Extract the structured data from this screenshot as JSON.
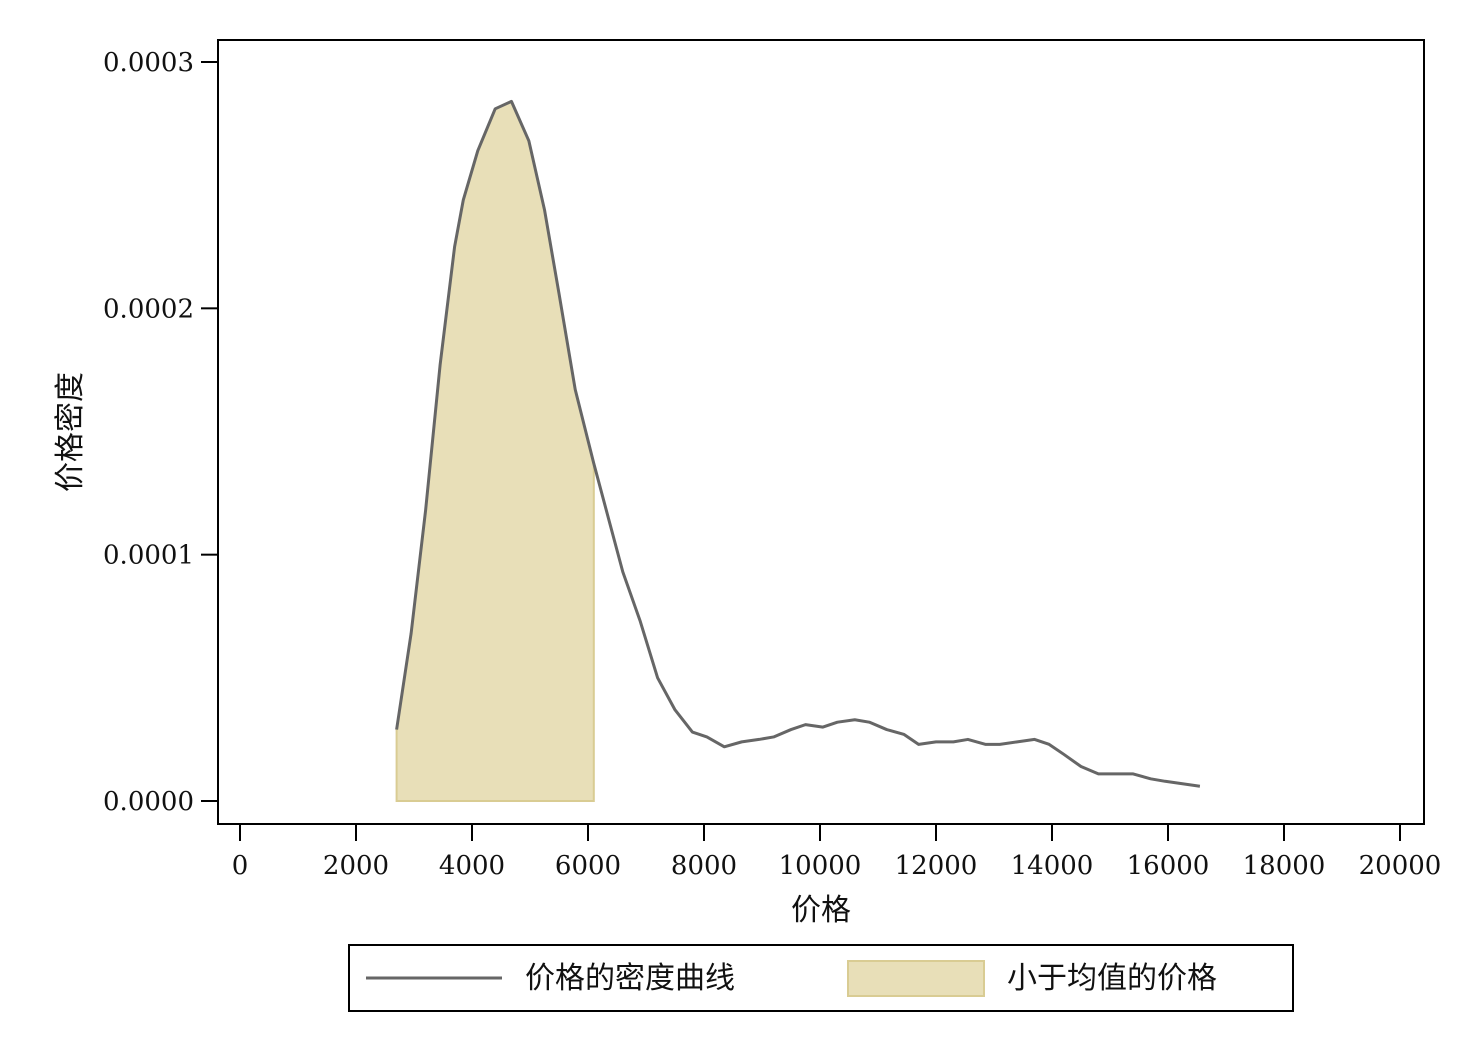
{
  "chart_data": {
    "type": "area",
    "title": "",
    "xlabel": "价格",
    "ylabel": "价格密度",
    "xlim": [
      0,
      20000
    ],
    "ylim": [
      0,
      0.0003
    ],
    "xticks": [
      0,
      2000,
      4000,
      6000,
      8000,
      10000,
      12000,
      14000,
      16000,
      18000,
      20000
    ],
    "yticks": [
      0.0,
      0.0001,
      0.0002,
      0.0003
    ],
    "xtick_labels": [
      "0",
      "2000",
      "4000",
      "6000",
      "8000",
      "10000",
      "12000",
      "14000",
      "16000",
      "18000",
      "20000"
    ],
    "ytick_labels": [
      "0.0000",
      "0.0001",
      "0.0002",
      "0.0003"
    ],
    "grid": false,
    "legend_position": "bottom",
    "colors": {
      "line": "#666666",
      "fill": "#e8dfb8",
      "fill_edge": "#d9cc93"
    },
    "series": [
      {
        "name": "价格的密度曲线",
        "kind": "line",
        "x": [
          2700,
          2950,
          3200,
          3450,
          3700,
          3850,
          4100,
          4400,
          4680,
          4980,
          5250,
          5500,
          5780,
          6100,
          6350,
          6600,
          6900,
          7200,
          7500,
          7800,
          8050,
          8350,
          8650,
          8950,
          9200,
          9500,
          9750,
          10050,
          10300,
          10600,
          10850,
          11150,
          11450,
          11700,
          12000,
          12300,
          12550,
          12850,
          13100,
          13400,
          13700,
          13950,
          14200,
          14500,
          14800,
          15100,
          15400,
          15700,
          15950,
          16250,
          16550
        ],
        "y": [
          2.9e-05,
          6.8e-05,
          0.000118,
          0.000177,
          0.000225,
          0.000244,
          0.000264,
          0.000281,
          0.000284,
          0.000268,
          0.00024,
          0.000206,
          0.000167,
          0.000137,
          0.000115,
          9.3e-05,
          7.3e-05,
          5e-05,
          3.7e-05,
          2.8e-05,
          2.6e-05,
          2.2e-05,
          2.4e-05,
          2.5e-05,
          2.6e-05,
          2.9e-05,
          3.1e-05,
          3e-05,
          3.2e-05,
          3.3e-05,
          3.2e-05,
          2.9e-05,
          2.7e-05,
          2.3e-05,
          2.4e-05,
          2.4e-05,
          2.5e-05,
          2.3e-05,
          2.3e-05,
          2.4e-05,
          2.5e-05,
          2.3e-05,
          1.9e-05,
          1.4e-05,
          1.1e-05,
          1.1e-05,
          1.1e-05,
          9e-06,
          8e-06,
          7e-06,
          6e-06
        ]
      },
      {
        "name": "小于均值的价格",
        "kind": "area",
        "x_range": [
          2700,
          6100
        ]
      }
    ]
  }
}
